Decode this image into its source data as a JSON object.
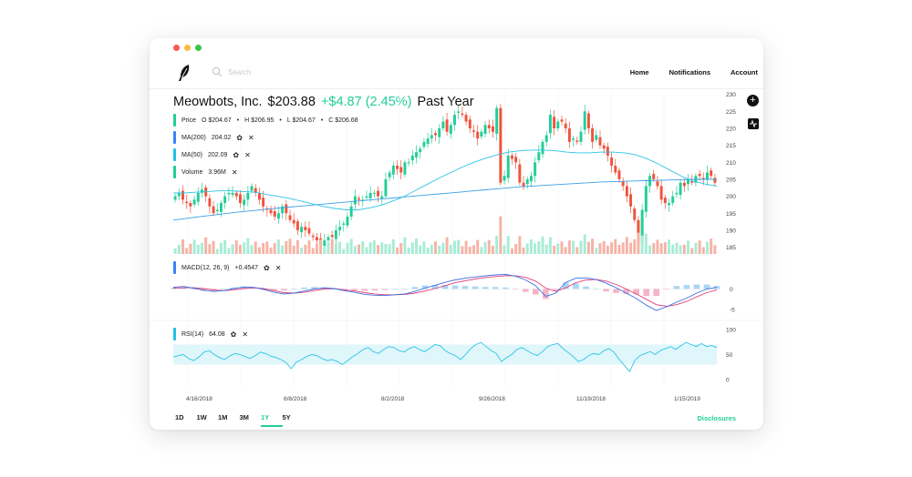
{
  "window": {
    "dots": [
      "#fc5753",
      "#fdbc40",
      "#33c748"
    ]
  },
  "search": {
    "placeholder": "Search"
  },
  "nav": {
    "items": [
      "Home",
      "Notifications",
      "Account"
    ]
  },
  "header": {
    "company": "Meowbots, Inc.",
    "price": "$203.88",
    "change": "+$4.87 (2.45%)",
    "period": "Past Year"
  },
  "indicators": {
    "price": {
      "label": "Price",
      "o": "O $204.67",
      "h": "H $206.95",
      "l": "L $204.67",
      "c": "C $206.68",
      "color": "#21ce99"
    },
    "ma200": {
      "label": "MA(200)",
      "value": "204.02",
      "color": "#3b82f6"
    },
    "ma50": {
      "label": "MA(50)",
      "value": "202.09",
      "color": "#22c0e8"
    },
    "volume": {
      "label": "Volume",
      "value": "3.96M",
      "color": "#21ce99"
    },
    "macd": {
      "label": "MACD(12, 26, 9)",
      "value": "+0.4547",
      "color": "#3b82f6"
    },
    "rsi": {
      "label": "RSI(14)",
      "value": "64.08",
      "color": "#22c0e8"
    }
  },
  "colors": {
    "up": "#21ce99",
    "down": "#f0533c",
    "ma200": "#3aa0e6",
    "ma50": "#2ec4e6",
    "macd": "#3b6fe0",
    "signal": "#e0407a",
    "rsi": "#2ec4e6",
    "rsi_band": "#dff6fb",
    "vol_up": "#a8ecd6",
    "vol_down": "#f6b3a6"
  },
  "chart_data": {
    "type": "line",
    "x_tick_labels": [
      "4/16/2018",
      "6/8/2018",
      "8/2/2018",
      "9/26/2018",
      "11/19/2018",
      "1/15/2019"
    ],
    "price_axis": {
      "ticks": [
        "230",
        "225",
        "220",
        "215",
        "210",
        "205",
        "200",
        "195",
        "190",
        "185"
      ],
      "ylim": [
        185,
        230
      ]
    },
    "macd_axis": {
      "ticks": [
        "0",
        "-5"
      ]
    },
    "rsi_axis": {
      "ticks": [
        "100",
        "50",
        "0"
      ],
      "ylim": [
        0,
        100
      ],
      "band": [
        30,
        70
      ]
    },
    "close": [
      200,
      201,
      199,
      198,
      197,
      199,
      201,
      202,
      200,
      197,
      195,
      196,
      198,
      200,
      201,
      201,
      200,
      198,
      199,
      201,
      203,
      201,
      199,
      197,
      196,
      195,
      194,
      195,
      197,
      195,
      193,
      192,
      190,
      191,
      190,
      189,
      188,
      187,
      186,
      187,
      188,
      188,
      190,
      191,
      192,
      194,
      197,
      200,
      199,
      199,
      200,
      201,
      201,
      200,
      200,
      205,
      207,
      209,
      208,
      207,
      210,
      210,
      212,
      213,
      214,
      216,
      217,
      218,
      218,
      220,
      222,
      219,
      221,
      224,
      225,
      224,
      222,
      220,
      219,
      217,
      219,
      221,
      220,
      219,
      226,
      204,
      206,
      212,
      211,
      210,
      204,
      203,
      205,
      206,
      210,
      213,
      216,
      218,
      224,
      220,
      222,
      222,
      220,
      216,
      217,
      216,
      219,
      225,
      220,
      216,
      218,
      215,
      214,
      212,
      209,
      207,
      205,
      203,
      200,
      197,
      193,
      186,
      196,
      203,
      206,
      205,
      203,
      199,
      198,
      198,
      200,
      201,
      204,
      203,
      205,
      204,
      206,
      206,
      205,
      207,
      206,
      204
    ],
    "ma200": [
      193,
      193.4,
      193.9,
      194.3,
      194.7,
      195.1,
      195.5,
      195.8,
      196.2,
      196.5,
      196.8,
      197.1,
      197.4,
      197.7,
      198,
      198.3,
      198.6,
      198.9,
      199.2,
      199.5,
      199.8,
      200.1,
      200.4,
      200.7,
      201,
      201.3,
      201.6,
      201.9,
      202.2,
      202.5,
      202.8,
      203,
      203.2,
      203.4,
      203.6,
      203.8,
      204,
      204.2,
      204.3,
      204.4,
      204.5,
      204.6,
      204.7,
      204.8,
      204.9,
      205,
      205,
      205
    ],
    "ma50": [
      201,
      201,
      201.2,
      201.4,
      201.6,
      201.6,
      201.4,
      201.2,
      200.6,
      200,
      199.4,
      198.6,
      197.8,
      197,
      196.4,
      196,
      196,
      196.6,
      197.4,
      198.6,
      200,
      201.8,
      203.6,
      205.4,
      207,
      208.6,
      210,
      211.2,
      212.2,
      213,
      213.4,
      213.6,
      213.6,
      213.4,
      213,
      212.8,
      212.8,
      213,
      213,
      212.8,
      212.2,
      211,
      209.4,
      207.6,
      205.8,
      204.4,
      203.6,
      203
    ],
    "macd": [
      0.4,
      0.6,
      0.2,
      -0.3,
      -0.6,
      -0.4,
      0.1,
      0.5,
      0.4,
      -0.1,
      -0.8,
      -1.2,
      -1,
      -0.5,
      0,
      0.3,
      0.1,
      -0.4,
      -0.8,
      -1.3,
      -1.5,
      -1.6,
      -1.4,
      -1.2,
      -0.6,
      0.2,
      0.9,
      1.6,
      2.2,
      2.6,
      2.9,
      3.2,
      3.4,
      3.5,
      3.1,
      2.2,
      0.8,
      -1.8,
      -1,
      1.6,
      2.6,
      2.7,
      2.3,
      1.4,
      0.3,
      -1,
      -2.3,
      -3.9,
      -5.2,
      -4.3,
      -3.2,
      -2.2,
      -1,
      0,
      0.4
    ],
    "signal": [
      0.2,
      0.3,
      0.3,
      0.1,
      -0.2,
      -0.4,
      -0.2,
      0.1,
      0.3,
      0.1,
      -0.4,
      -0.9,
      -1,
      -0.8,
      -0.4,
      0,
      0.1,
      -0.2,
      -0.5,
      -0.9,
      -1.2,
      -1.4,
      -1.4,
      -1.3,
      -1,
      -0.5,
      0.1,
      0.8,
      1.5,
      2,
      2.4,
      2.8,
      3,
      3.2,
      3.2,
      2.8,
      1.9,
      0.2,
      -0.6,
      0.3,
      1.5,
      2.2,
      2.3,
      1.9,
      1.1,
      0,
      -1.2,
      -2.5,
      -3.8,
      -4.2,
      -3.8,
      -3,
      -1.9,
      -0.9,
      -0.2
    ],
    "rsi": [
      45,
      48,
      50,
      42,
      38,
      45,
      55,
      58,
      50,
      44,
      40,
      47,
      52,
      50,
      46,
      42,
      48,
      55,
      52,
      47,
      44,
      40,
      34,
      22,
      35,
      40,
      46,
      50,
      48,
      42,
      38,
      40,
      36,
      30,
      38,
      46,
      52,
      60,
      64,
      56,
      52,
      60,
      66,
      64,
      58,
      55,
      62,
      66,
      60,
      56,
      62,
      70,
      68,
      58,
      52,
      48,
      40,
      50,
      62,
      70,
      74,
      66,
      58,
      52,
      36,
      44,
      50,
      60,
      64,
      58,
      52,
      48,
      56,
      66,
      70,
      72,
      62,
      54,
      46,
      36,
      40,
      48,
      52,
      50,
      58,
      62,
      54,
      40,
      28,
      16,
      38,
      48,
      52,
      56,
      50,
      58,
      62,
      66,
      60,
      68,
      74,
      70,
      66,
      72,
      66,
      68,
      64
    ]
  },
  "ranges": [
    "1D",
    "1W",
    "1M",
    "3M",
    "1Y",
    "5Y"
  ],
  "active_range": "1Y",
  "footer": {
    "disclosures": "Disclosures"
  }
}
